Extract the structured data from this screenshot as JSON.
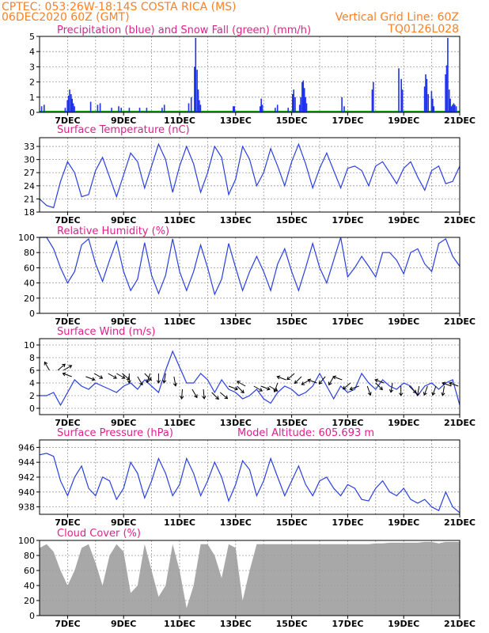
{
  "header": {
    "line1_left": "CPTEC:   053:26W-18:14S   COSTA RICA (MS)",
    "line2_left": "06DEC2020 60Z (GMT)",
    "line2_right": "Vertical Grid Line: 60Z",
    "line3_right": "TQ0126L028"
  },
  "colors": {
    "header": "#ff7f24",
    "panel_title": "#e0208a",
    "line": "#2a3fe0",
    "precip": "#1f32ee",
    "snow": "#16a61c",
    "cloud": "#a8a8a8",
    "wind_arrow": "#000000"
  },
  "chart_data": [
    {
      "id": "precip",
      "type": "bar",
      "title": "Precipitation (blue) and Snow Fall (green) (mm/h)",
      "ylim": [
        0,
        5
      ],
      "yticks": [
        "0",
        "1",
        "2",
        "3",
        "4",
        "5"
      ],
      "xlim": [
        6,
        21
      ],
      "xticks": [
        "7DEC",
        "9DEC",
        "11DEC",
        "13DEC",
        "15DEC",
        "17DEC",
        "19DEC",
        "21DEC"
      ],
      "grid": true,
      "series": [
        {
          "name": "Precipitation",
          "x": [
            6.08,
            6.17,
            6.92,
            7.0,
            7.04,
            7.08,
            7.13,
            7.17,
            7.21,
            7.25,
            7.83,
            8.08,
            8.17,
            8.58,
            8.83,
            8.92,
            9.21,
            9.58,
            9.83,
            10.38,
            10.46,
            11.33,
            11.42,
            11.54,
            11.58,
            11.63,
            11.67,
            11.71,
            11.75,
            12.92,
            12.96,
            13.88,
            13.92,
            13.96,
            14.42,
            14.5,
            14.88,
            15.04,
            15.08,
            15.13,
            15.29,
            15.33,
            15.38,
            15.42,
            15.46,
            15.5,
            15.54,
            16.8,
            16.88,
            17.88,
            17.92,
            18.83,
            18.92,
            18.96,
            19.75,
            19.79,
            19.83,
            19.88,
            20.0,
            20.04,
            20.08,
            20.5,
            20.54,
            20.58,
            20.63,
            20.67,
            20.71,
            20.75,
            20.79,
            20.83,
            20.88
          ],
          "values": [
            0.4,
            0.5,
            0.3,
            0.8,
            1.1,
            1.5,
            1.2,
            0.9,
            0.6,
            0.4,
            0.7,
            0.5,
            0.6,
            0.3,
            0.4,
            0.3,
            0.3,
            0.3,
            0.3,
            0.3,
            0.5,
            0.6,
            1.0,
            3.0,
            4.9,
            2.8,
            1.5,
            0.8,
            0.5,
            0.4,
            0.4,
            0.4,
            0.9,
            0.5,
            0.3,
            0.5,
            0.3,
            1.2,
            1.5,
            1.0,
            0.5,
            1.0,
            2.0,
            2.1,
            1.6,
            1.0,
            0.6,
            1.0,
            0.4,
            1.5,
            2.0,
            2.9,
            2.2,
            1.5,
            1.7,
            2.5,
            2.2,
            1.2,
            1.4,
            0.9,
            0.4,
            2.5,
            3.1,
            4.9,
            1.5,
            0.9,
            0.4,
            0.5,
            0.6,
            0.5,
            0.4
          ]
        },
        {
          "name": "Snow Fall",
          "x": [
            6,
            21
          ],
          "values": [
            0,
            0
          ]
        }
      ]
    },
    {
      "id": "temperature",
      "type": "line",
      "title": "Surface Temperature (nC)",
      "ylim": [
        18,
        35
      ],
      "yticks": [
        "18",
        "21",
        "24",
        "27",
        "30",
        "33"
      ],
      "xlim": [
        6,
        21
      ],
      "xticks": [
        "7DEC",
        "9DEC",
        "11DEC",
        "13DEC",
        "15DEC",
        "17DEC",
        "19DEC",
        "21DEC"
      ],
      "grid": true,
      "series": [
        {
          "name": "",
          "x": [
            6.0,
            6.25,
            6.5,
            6.75,
            7.0,
            7.25,
            7.5,
            7.75,
            8.0,
            8.25,
            8.5,
            8.75,
            9.0,
            9.25,
            9.5,
            9.75,
            10.0,
            10.25,
            10.5,
            10.75,
            11.0,
            11.25,
            11.5,
            11.75,
            12.0,
            12.25,
            12.5,
            12.75,
            13.0,
            13.25,
            13.5,
            13.75,
            14.0,
            14.25,
            14.5,
            14.75,
            15.0,
            15.25,
            15.5,
            15.75,
            16.0,
            16.25,
            16.5,
            16.75,
            17.0,
            17.25,
            17.5,
            17.75,
            18.0,
            18.25,
            18.5,
            18.75,
            19.0,
            19.25,
            19.5,
            19.75,
            20.0,
            20.25,
            20.5,
            20.75,
            21.0
          ],
          "values": [
            21.0,
            19.5,
            19.0,
            25.0,
            29.5,
            27.0,
            21.5,
            22.0,
            27.5,
            30.5,
            26.0,
            21.5,
            26.5,
            31.5,
            29.5,
            23.5,
            28.5,
            33.5,
            30.0,
            22.5,
            28.5,
            33.0,
            29.0,
            22.5,
            27.0,
            33.0,
            30.5,
            22.0,
            25.5,
            33.0,
            30.0,
            24.0,
            27.0,
            32.5,
            28.5,
            24.0,
            29.5,
            33.5,
            29.0,
            23.5,
            28.0,
            31.5,
            27.5,
            23.5,
            28.0,
            28.5,
            27.5,
            24.0,
            28.5,
            29.5,
            27.0,
            24.5,
            28.0,
            29.5,
            26.0,
            23.0,
            27.5,
            28.5,
            24.5,
            25.0,
            28.5
          ]
        }
      ]
    },
    {
      "id": "humidity",
      "type": "line",
      "title": "Relative Humidity (%)",
      "ylim": [
        0,
        100
      ],
      "yticks": [
        "0",
        "20",
        "40",
        "60",
        "80",
        "100"
      ],
      "xlim": [
        6,
        21
      ],
      "xticks": [
        "7DEC",
        "9DEC",
        "11DEC",
        "13DEC",
        "15DEC",
        "17DEC",
        "19DEC",
        "21DEC"
      ],
      "grid": true,
      "series": [
        {
          "name": "",
          "x": [
            6.0,
            6.25,
            6.5,
            6.75,
            7.0,
            7.25,
            7.5,
            7.75,
            8.0,
            8.25,
            8.5,
            8.75,
            9.0,
            9.25,
            9.5,
            9.75,
            10.0,
            10.25,
            10.5,
            10.75,
            11.0,
            11.25,
            11.5,
            11.75,
            12.0,
            12.25,
            12.5,
            12.75,
            13.0,
            13.25,
            13.5,
            13.75,
            14.0,
            14.25,
            14.5,
            14.75,
            15.0,
            15.25,
            15.5,
            15.75,
            16.0,
            16.25,
            16.5,
            16.75,
            17.0,
            17.25,
            17.5,
            17.75,
            18.0,
            18.25,
            18.5,
            18.75,
            19.0,
            19.25,
            19.5,
            19.75,
            20.0,
            20.25,
            20.5,
            20.75,
            21.0
          ],
          "values": [
            100.0,
            100.0,
            85.0,
            60.0,
            40.0,
            55.0,
            90.0,
            98.0,
            65.0,
            42.0,
            70.0,
            95.0,
            55.0,
            30.0,
            45.0,
            93.0,
            50.0,
            26.0,
            50.0,
            98.0,
            55.0,
            30.0,
            55.0,
            90.0,
            60.0,
            25.0,
            45.0,
            92.0,
            60.0,
            30.0,
            55.0,
            75.0,
            55.0,
            30.0,
            65.0,
            85.0,
            55.0,
            30.0,
            60.0,
            92.0,
            60.0,
            40.0,
            70.0,
            100.0,
            48.0,
            60.0,
            75.0,
            62.0,
            48.0,
            80.0,
            80.0,
            70.0,
            52.0,
            80.0,
            85.0,
            65.0,
            55.0,
            92.0,
            98.0,
            75.0,
            62.0
          ]
        }
      ]
    },
    {
      "id": "wind",
      "type": "line",
      "title": "Surface Wind (m/s)",
      "ylim": [
        -1,
        11
      ],
      "yticks": [
        "0",
        "2",
        "4",
        "6",
        "8",
        "10"
      ],
      "xlim": [
        6,
        21
      ],
      "xticks": [
        "7DEC",
        "9DEC",
        "11DEC",
        "13DEC",
        "15DEC",
        "17DEC",
        "19DEC",
        "21DEC"
      ],
      "grid": true,
      "series": [
        {
          "name": "",
          "x": [
            6.0,
            6.25,
            6.5,
            6.75,
            7.0,
            7.25,
            7.5,
            7.75,
            8.0,
            8.25,
            8.5,
            8.75,
            9.0,
            9.25,
            9.5,
            9.75,
            10.0,
            10.25,
            10.5,
            10.75,
            11.0,
            11.25,
            11.5,
            11.75,
            12.0,
            12.25,
            12.5,
            12.75,
            13.0,
            13.25,
            13.5,
            13.75,
            14.0,
            14.25,
            14.5,
            14.75,
            15.0,
            15.25,
            15.5,
            15.75,
            16.0,
            16.25,
            16.5,
            16.75,
            17.0,
            17.25,
            17.5,
            17.75,
            18.0,
            18.25,
            18.5,
            18.75,
            19.0,
            19.25,
            19.5,
            19.75,
            20.0,
            20.25,
            20.5,
            20.75,
            21.0
          ],
          "values": [
            2.0,
            2.0,
            2.5,
            0.5,
            2.5,
            4.5,
            3.5,
            3.0,
            4.0,
            3.5,
            3.0,
            2.5,
            3.5,
            4.0,
            3.0,
            4.5,
            3.5,
            2.5,
            6.0,
            9.0,
            6.5,
            4.0,
            4.0,
            5.5,
            4.5,
            2.5,
            4.5,
            3.0,
            2.5,
            1.5,
            2.0,
            3.0,
            1.5,
            0.8,
            2.5,
            3.5,
            3.0,
            2.0,
            2.5,
            3.5,
            5.5,
            3.5,
            1.5,
            3.5,
            2.5,
            3.0,
            5.5,
            4.0,
            3.0,
            4.5,
            3.5,
            3.0,
            4.0,
            3.5,
            2.0,
            3.5,
            4.0,
            3.0,
            4.0,
            4.5,
            0.5
          ]
        },
        {
          "name": "wind vectors",
          "x": [
            6.35,
            6.65,
            6.85,
            7.15,
            7.65,
            7.95,
            8.45,
            8.75,
            8.95,
            9.2,
            9.5,
            9.75,
            9.95,
            10.25,
            10.5,
            10.8,
            11.1,
            11.45,
            11.85,
            12.15,
            12.45,
            12.75,
            13.05,
            13.35,
            13.65,
            13.9,
            14.2,
            14.5,
            14.8,
            15.1,
            15.35,
            15.65,
            15.9,
            16.2,
            16.5,
            16.8,
            17.1,
            17.4,
            17.7,
            18.0,
            18.3,
            18.6,
            18.9,
            19.2,
            19.55,
            19.85,
            20.15,
            20.45,
            20.7,
            20.95
          ],
          "values": [
            6.0,
            6.0,
            6.0,
            5.0,
            5.0,
            5.5,
            5.5,
            5.5,
            5.5,
            5.5,
            5.0,
            5.5,
            5.5,
            5.5,
            5.5,
            5.0,
            3.0,
            3.0,
            3.0,
            2.5,
            2.5,
            3.5,
            3.5,
            3.5,
            3.5,
            3.5,
            3.5,
            4.0,
            4.5,
            5.5,
            5.0,
            4.5,
            4.0,
            5.0,
            5.0,
            4.5,
            4.0,
            3.5,
            3.5,
            4.0,
            4.0,
            4.0,
            3.5,
            3.5,
            3.5,
            3.5,
            3.5,
            3.5,
            3.5,
            3.5
          ]
        }
      ]
    },
    {
      "id": "pressure",
      "type": "line",
      "title": "Surface Pressure (hPa)",
      "subtitle": "Model Altitude: 605.693 m",
      "ylim": [
        937,
        947
      ],
      "yticks": [
        "938",
        "940",
        "942",
        "944",
        "946"
      ],
      "xlim": [
        6,
        21
      ],
      "xticks": [
        "7DEC",
        "9DEC",
        "11DEC",
        "13DEC",
        "15DEC",
        "17DEC",
        "19DEC",
        "21DEC"
      ],
      "grid": true,
      "series": [
        {
          "name": "",
          "x": [
            6.0,
            6.25,
            6.5,
            6.75,
            7.0,
            7.25,
            7.5,
            7.75,
            8.0,
            8.25,
            8.5,
            8.75,
            9.0,
            9.25,
            9.5,
            9.75,
            10.0,
            10.25,
            10.5,
            10.75,
            11.0,
            11.25,
            11.5,
            11.75,
            12.0,
            12.25,
            12.5,
            12.75,
            13.0,
            13.25,
            13.5,
            13.75,
            14.0,
            14.25,
            14.5,
            14.75,
            15.0,
            15.25,
            15.5,
            15.75,
            16.0,
            16.25,
            16.5,
            16.75,
            17.0,
            17.25,
            17.5,
            17.75,
            18.0,
            18.25,
            18.5,
            18.75,
            19.0,
            19.25,
            19.5,
            19.75,
            20.0,
            20.25,
            20.5,
            20.75,
            21.0
          ],
          "values": [
            945.0,
            945.2,
            944.8,
            941.5,
            939.5,
            942.0,
            943.5,
            940.5,
            939.5,
            942.0,
            941.5,
            939.0,
            940.5,
            944.0,
            942.5,
            939.2,
            941.5,
            944.5,
            942.5,
            939.5,
            941.0,
            944.5,
            942.5,
            939.5,
            941.5,
            944.0,
            942.0,
            938.8,
            941.0,
            944.2,
            943.0,
            939.5,
            941.5,
            944.5,
            942.0,
            939.5,
            941.5,
            943.5,
            941.0,
            939.5,
            941.5,
            942.0,
            940.5,
            939.5,
            941.0,
            940.5,
            939.0,
            938.8,
            940.5,
            941.5,
            940.0,
            939.5,
            940.5,
            939.0,
            938.5,
            939.0,
            938.0,
            937.5,
            940.0,
            938.0,
            937.2
          ]
        }
      ]
    },
    {
      "id": "cloud",
      "type": "area",
      "title": "Cloud Cover (%)",
      "ylim": [
        0,
        100
      ],
      "yticks": [
        "0",
        "20",
        "40",
        "60",
        "80",
        "100"
      ],
      "xlim": [
        6,
        21
      ],
      "xticks": [
        "7DEC",
        "9DEC",
        "11DEC",
        "13DEC",
        "15DEC",
        "17DEC",
        "19DEC",
        "21DEC"
      ],
      "grid": true,
      "series": [
        {
          "name": "",
          "x": [
            6.0,
            6.25,
            6.5,
            6.75,
            7.0,
            7.25,
            7.5,
            7.75,
            8.0,
            8.25,
            8.5,
            8.75,
            9.0,
            9.25,
            9.5,
            9.75,
            10.0,
            10.25,
            10.5,
            10.75,
            11.0,
            11.25,
            11.5,
            11.75,
            12.0,
            12.25,
            12.5,
            12.75,
            13.0,
            13.25,
            13.5,
            13.75,
            14.0,
            14.25,
            14.5,
            14.75,
            15.0,
            15.25,
            15.5,
            15.75,
            16.0,
            16.25,
            16.5,
            16.75,
            17.0,
            17.25,
            17.5,
            17.75,
            18.0,
            18.25,
            18.5,
            18.75,
            19.0,
            19.25,
            19.5,
            19.75,
            20.0,
            20.25,
            20.5,
            20.75,
            21.0
          ],
          "values": [
            90.0,
            95.0,
            85.0,
            60.0,
            40.0,
            60.0,
            90.0,
            95.0,
            70.0,
            40.0,
            80.0,
            95.0,
            85.0,
            30.0,
            40.0,
            95.0,
            60.0,
            25.0,
            40.0,
            95.0,
            60.0,
            10.0,
            40.0,
            95.0,
            95.0,
            80.0,
            50.0,
            95.0,
            90.0,
            20.0,
            60.0,
            95.0,
            95.0,
            95.0,
            95.0,
            95.0,
            95.0,
            95.0,
            95.0,
            95.0,
            95.0,
            95.0,
            95.0,
            95.0,
            95.0,
            95.0,
            95.0,
            95.0,
            96.0,
            96.0,
            97.0,
            97.0,
            97.0,
            97.0,
            97.0,
            98.0,
            98.0,
            96.0,
            98.0,
            98.0,
            98.0
          ]
        }
      ]
    }
  ]
}
